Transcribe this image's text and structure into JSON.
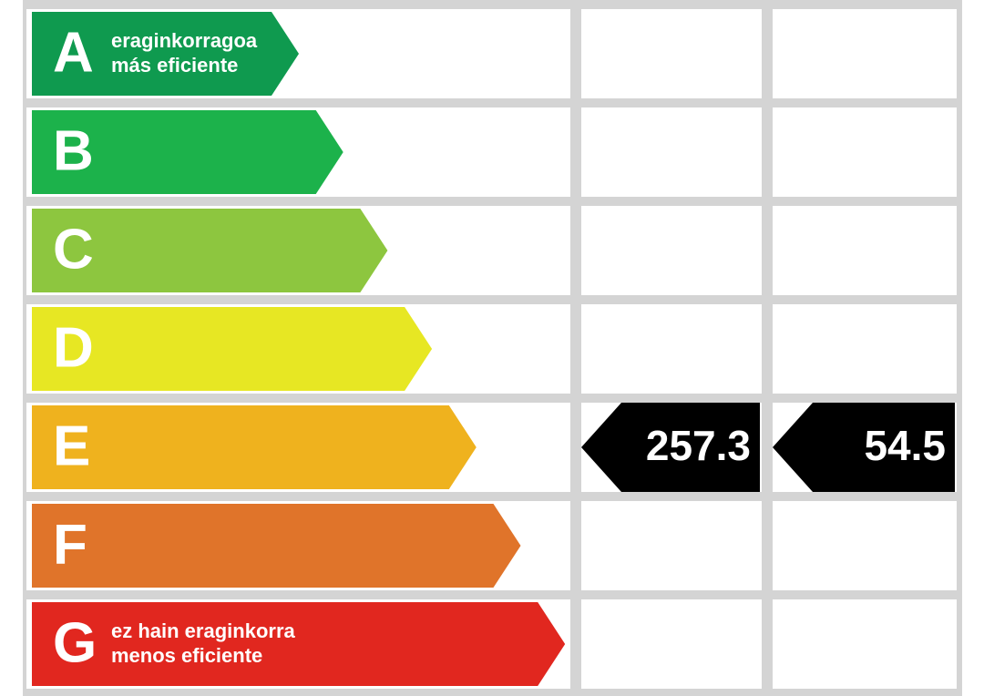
{
  "ratings": [
    {
      "letter": "A",
      "color": "#0f9a4f",
      "label_lines": [
        "eraginkorragoa",
        "más eficiente"
      ]
    },
    {
      "letter": "B",
      "color": "#1cb24b"
    },
    {
      "letter": "C",
      "color": "#8dc63f"
    },
    {
      "letter": "D",
      "color": "#e7e723"
    },
    {
      "letter": "E",
      "color": "#efb21e",
      "values": [
        257.3,
        54.5
      ]
    },
    {
      "letter": "F",
      "color": "#e0742a"
    },
    {
      "letter": "G",
      "color": "#e1271f",
      "label_lines": [
        "ez hain eraginkorra",
        "menos eficiente"
      ]
    }
  ]
}
